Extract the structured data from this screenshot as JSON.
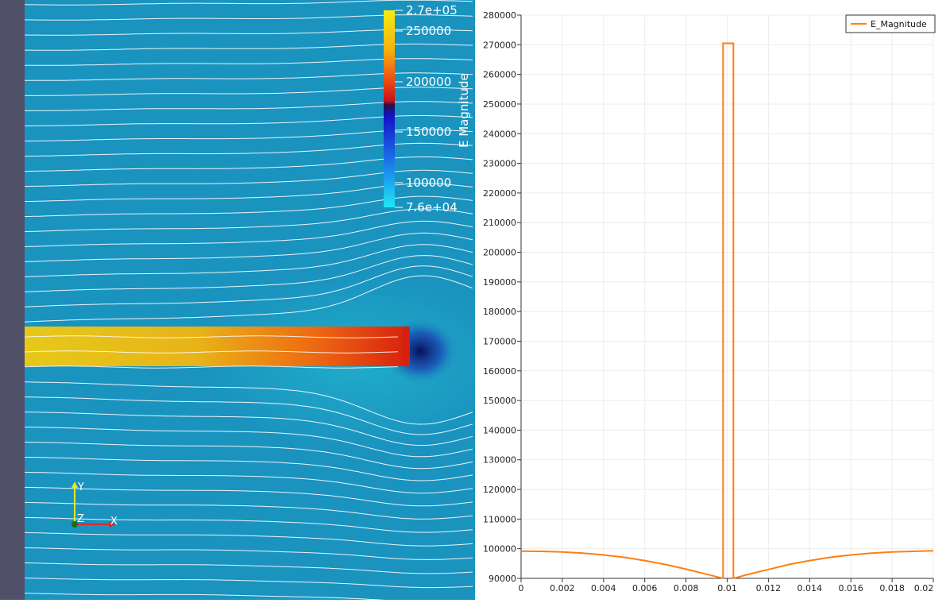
{
  "render_view": {
    "colorbar": {
      "title": "E Magnitude",
      "tick_labels": [
        "2.7e+05",
        "250000",
        "200000",
        "150000",
        "100000",
        "7.6e+04"
      ],
      "tick_values": [
        270000,
        250000,
        200000,
        150000,
        100000,
        76000
      ],
      "range": [
        76000,
        270000
      ]
    },
    "orientation_axes": {
      "y_label": "Y",
      "z_label": "Z",
      "x_label": "X"
    },
    "colors": {
      "field_background": "#1a93bf",
      "streamline": "#ffffff",
      "conductor": "#e6c21c"
    }
  },
  "chart_data": {
    "type": "line",
    "series": [
      {
        "name": "E_Magnitude",
        "color": "#ff7f0e",
        "points": [
          [
            0,
            99200
          ],
          [
            0.001,
            99100
          ],
          [
            0.002,
            98900
          ],
          [
            0.003,
            98500
          ],
          [
            0.004,
            97900
          ],
          [
            0.005,
            97100
          ],
          [
            0.006,
            96000
          ],
          [
            0.007,
            94700
          ],
          [
            0.008,
            93100
          ],
          [
            0.009,
            91400
          ],
          [
            0.0097,
            90200
          ],
          [
            0.0098,
            90100
          ],
          [
            0.0098,
            270500
          ],
          [
            0.0103,
            270500
          ],
          [
            0.0103,
            90100
          ],
          [
            0.0104,
            90200
          ],
          [
            0.011,
            91300
          ],
          [
            0.012,
            93000
          ],
          [
            0.013,
            94700
          ],
          [
            0.014,
            96000
          ],
          [
            0.015,
            97100
          ],
          [
            0.016,
            97900
          ],
          [
            0.017,
            98500
          ],
          [
            0.018,
            98900
          ],
          [
            0.019,
            99100
          ],
          [
            0.02,
            99300
          ]
        ]
      }
    ],
    "xlim": [
      0,
      0.02
    ],
    "ylim": [
      90000,
      280000
    ],
    "x_ticks": [
      "0",
      "0.002",
      "0.004",
      "0.006",
      "0.008",
      "0.01",
      "0.012",
      "0.014",
      "0.016",
      "0.018",
      "0.02"
    ],
    "x_tick_values": [
      0,
      0.002,
      0.004,
      0.006,
      0.008,
      0.01,
      0.012,
      0.014,
      0.016,
      0.018,
      0.02
    ],
    "y_ticks": [
      "90000",
      "100000",
      "110000",
      "120000",
      "130000",
      "140000",
      "150000",
      "160000",
      "170000",
      "180000",
      "190000",
      "200000",
      "210000",
      "220000",
      "230000",
      "240000",
      "250000",
      "260000",
      "270000",
      "280000"
    ],
    "y_tick_values": [
      90000,
      100000,
      110000,
      120000,
      130000,
      140000,
      150000,
      160000,
      170000,
      180000,
      190000,
      200000,
      210000,
      220000,
      230000,
      240000,
      250000,
      260000,
      270000,
      280000
    ],
    "legend": {
      "entries": [
        "E_Magnitude"
      ],
      "placement": "top-right"
    },
    "grid": true,
    "title": "",
    "xlabel": "",
    "ylabel": ""
  }
}
